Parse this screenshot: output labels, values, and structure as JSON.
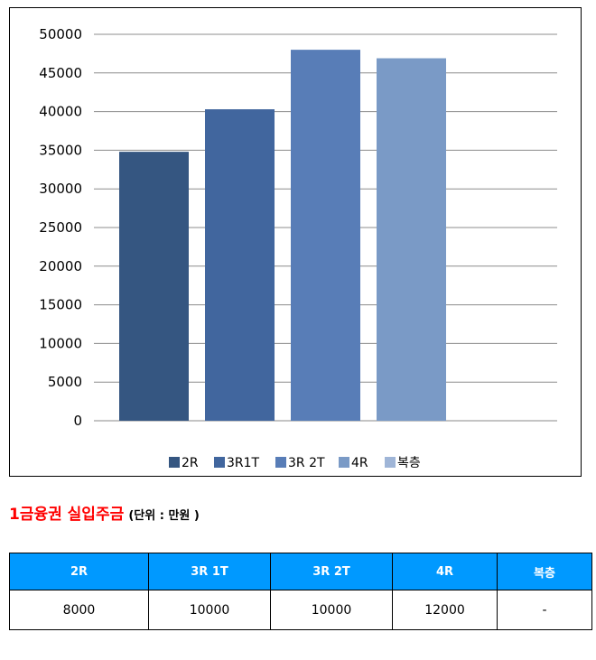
{
  "chart_data": {
    "type": "bar",
    "categories": [
      ""
    ],
    "series": [
      {
        "name": "2R",
        "values": [
          34800
        ],
        "color": "#355681"
      },
      {
        "name": "3R1T",
        "values": [
          40300
        ],
        "color": "#41669e"
      },
      {
        "name": "3R 2T",
        "values": [
          48000
        ],
        "color": "#587db7"
      },
      {
        "name": "4R",
        "values": [
          46900
        ],
        "color": "#7a9ac6"
      },
      {
        "name": "복층",
        "values": [
          null
        ],
        "color": "#9fb5d7"
      }
    ],
    "title": "",
    "xlabel": "",
    "ylabel": "",
    "ylim": [
      0,
      50000
    ],
    "yticks": [
      0,
      5000,
      10000,
      15000,
      20000,
      25000,
      30000,
      35000,
      40000,
      45000,
      50000
    ],
    "grid": true,
    "legend_position": "bottom"
  },
  "caption": {
    "main": "1금융권 실입주금",
    "unit": "(단위 : 만원 )"
  },
  "table": {
    "headers": [
      "2R",
      "3R 1T",
      "3R 2T",
      "4R",
      "복층"
    ],
    "rows": [
      [
        "8000",
        "10000",
        "10000",
        "12000",
        "-"
      ]
    ]
  }
}
